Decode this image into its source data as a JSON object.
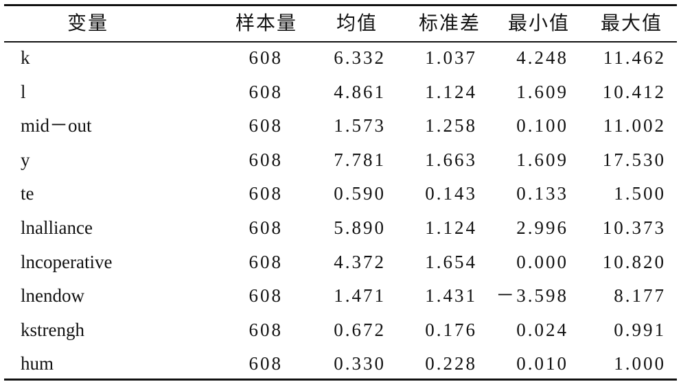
{
  "table": {
    "header": [
      "变量",
      "样本量",
      "均值",
      "标准差",
      "最小值",
      "最大值"
    ],
    "rows": [
      [
        "k",
        "608",
        "6.332",
        "1.037",
        "4.248",
        "11.462"
      ],
      [
        "l",
        "608",
        "4.861",
        "1.124",
        "1.609",
        "10.412"
      ],
      [
        "mid－out",
        "608",
        "1.573",
        "1.258",
        "0.100",
        "11.002"
      ],
      [
        "y",
        "608",
        "7.781",
        "1.663",
        "1.609",
        "17.530"
      ],
      [
        "te",
        "608",
        "0.590",
        "0.143",
        "0.133",
        "1.500"
      ],
      [
        "lnalliance",
        "608",
        "5.890",
        "1.124",
        "2.996",
        "10.373"
      ],
      [
        "lncoperative",
        "608",
        "4.372",
        "1.654",
        "0.000",
        "10.820"
      ],
      [
        "lnendow",
        "608",
        "1.471",
        "1.431",
        "－3.598",
        "8.177"
      ],
      [
        "kstrengh",
        "608",
        "0.672",
        "0.176",
        "0.024",
        "0.991"
      ],
      [
        "hum",
        "608",
        "0.330",
        "0.228",
        "0.010",
        "1.000"
      ]
    ]
  }
}
